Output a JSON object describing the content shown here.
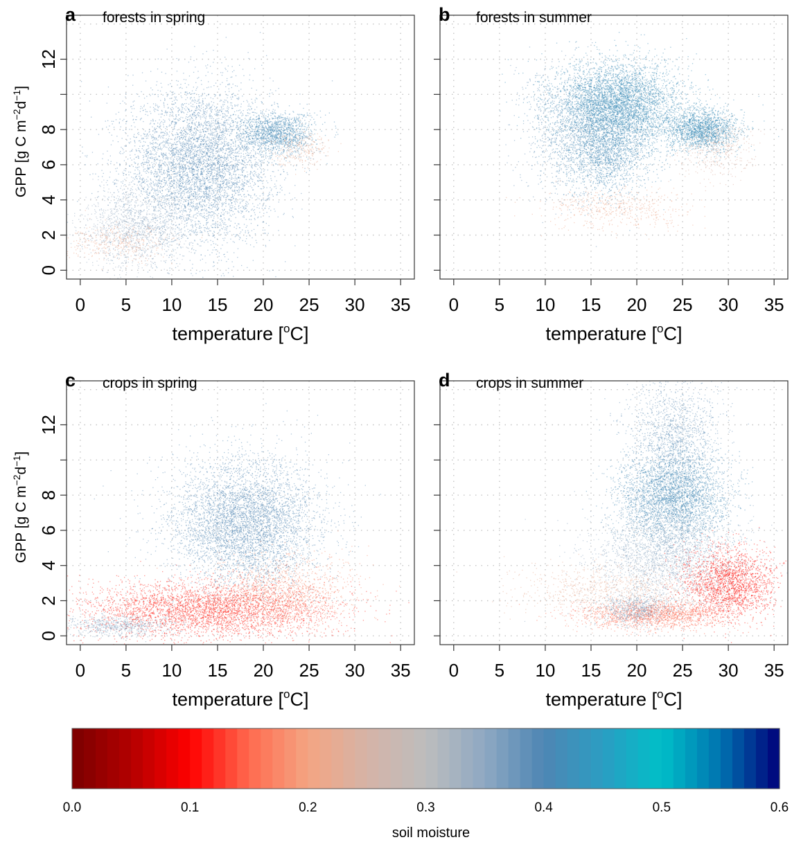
{
  "chart_data": [
    {
      "panel": "a",
      "type": "scatter",
      "title": "forests in spring",
      "xlabel": "temperature [",
      "xlabel_sup": "o",
      "xlabel_end": "C]",
      "ylabel": "GPP [g C m",
      "ylabel_sup1": "−2",
      "ylabel_mid": "d",
      "ylabel_sup2": "−1",
      "ylabel_end": "]",
      "xlim": [
        -1.5,
        36.5
      ],
      "ylim": [
        -0.5,
        14.5
      ],
      "xticks": [
        0,
        5,
        10,
        15,
        20,
        25,
        30,
        35
      ],
      "yticks": [
        0,
        2,
        4,
        6,
        8,
        12
      ],
      "grid": true,
      "color_variable": "soil moisture",
      "point_clusters": [
        {
          "x_mean": 13.0,
          "y_mean": 6.0,
          "x_sd": 4.0,
          "y_sd": 2.2,
          "soil_moisture": 0.39,
          "count": 5500
        },
        {
          "x_mean": 21.5,
          "y_mean": 7.8,
          "x_sd": 2.0,
          "y_sd": 0.6,
          "soil_moisture": 0.41,
          "count": 1400
        },
        {
          "x_mean": 6.0,
          "y_mean": 2.5,
          "x_sd": 3.0,
          "y_sd": 1.2,
          "soil_moisture": 0.34,
          "count": 1300
        },
        {
          "x_mean": 4.0,
          "y_mean": 1.5,
          "x_sd": 3.0,
          "y_sd": 0.5,
          "soil_moisture": 0.21,
          "count": 350
        },
        {
          "x_mean": 24.0,
          "y_mean": 7.0,
          "x_sd": 1.6,
          "y_sd": 0.5,
          "soil_moisture": 0.22,
          "count": 250
        }
      ]
    },
    {
      "panel": "b",
      "type": "scatter",
      "title": "forests in summer",
      "xlabel": "temperature [",
      "xlabel_sup": "o",
      "xlabel_end": "C]",
      "xlim": [
        -1.5,
        36.5
      ],
      "ylim": [
        -0.5,
        14.5
      ],
      "xticks": [
        0,
        5,
        10,
        15,
        20,
        25,
        30,
        35
      ],
      "yticks": [
        0,
        2,
        4,
        6,
        8,
        12
      ],
      "grid": true,
      "color_variable": "soil moisture",
      "point_clusters": [
        {
          "x_mean": 18.0,
          "y_mean": 9.5,
          "x_sd": 3.5,
          "y_sd": 1.2,
          "soil_moisture": 0.42,
          "count": 4500
        },
        {
          "x_mean": 16.5,
          "y_mean": 7.0,
          "x_sd": 2.6,
          "y_sd": 1.3,
          "soil_moisture": 0.41,
          "count": 2200
        },
        {
          "x_mean": 27.0,
          "y_mean": 8.0,
          "x_sd": 2.0,
          "y_sd": 0.6,
          "soil_moisture": 0.42,
          "count": 1800
        },
        {
          "x_mean": 18.0,
          "y_mean": 3.5,
          "x_sd": 4.0,
          "y_sd": 0.6,
          "soil_moisture": 0.21,
          "count": 500
        },
        {
          "x_mean": 28.5,
          "y_mean": 6.8,
          "x_sd": 2.0,
          "y_sd": 0.8,
          "soil_moisture": 0.24,
          "count": 400
        },
        {
          "x_mean": 12.0,
          "y_mean": 8.0,
          "x_sd": 2.5,
          "y_sd": 2.0,
          "soil_moisture": 0.38,
          "count": 800
        }
      ]
    },
    {
      "panel": "c",
      "type": "scatter",
      "title": "crops in spring",
      "xlabel": "temperature [",
      "xlabel_sup": "o",
      "xlabel_end": "C]",
      "ylabel": "GPP [g C m",
      "ylabel_sup1": "−2",
      "ylabel_mid": "d",
      "ylabel_sup2": "−1",
      "ylabel_end": "]",
      "xlim": [
        -1.5,
        36.5
      ],
      "ylim": [
        -0.5,
        14.5
      ],
      "xticks": [
        0,
        5,
        10,
        15,
        20,
        25,
        30,
        35
      ],
      "yticks": [
        0,
        2,
        4,
        6,
        8,
        12
      ],
      "grid": true,
      "color_variable": "soil moisture",
      "point_clusters": [
        {
          "x_mean": 18.0,
          "y_mean": 6.5,
          "x_sd": 4.0,
          "y_sd": 1.8,
          "soil_moisture": 0.39,
          "count": 5000
        },
        {
          "x_mean": 14.0,
          "y_mean": 1.5,
          "x_sd": 7.0,
          "y_sd": 0.8,
          "soil_moisture": 0.12,
          "count": 3800
        },
        {
          "x_mean": 22.0,
          "y_mean": 2.5,
          "x_sd": 4.0,
          "y_sd": 1.0,
          "soil_moisture": 0.18,
          "count": 1200
        },
        {
          "x_mean": 4.0,
          "y_mean": 0.6,
          "x_sd": 3.0,
          "y_sd": 0.3,
          "soil_moisture": 0.36,
          "count": 600
        }
      ]
    },
    {
      "panel": "d",
      "type": "scatter",
      "title": "crops in summer",
      "xlabel": "temperature [",
      "xlabel_sup": "o",
      "xlabel_end": "C]",
      "xlim": [
        -1.5,
        36.5
      ],
      "ylim": [
        -0.5,
        14.5
      ],
      "xticks": [
        0,
        5,
        10,
        15,
        20,
        25,
        30,
        35
      ],
      "yticks": [
        0,
        2,
        4,
        6,
        8,
        12
      ],
      "grid": true,
      "color_variable": "soil moisture",
      "point_clusters": [
        {
          "x_mean": 24.0,
          "y_mean": 8.0,
          "x_sd": 3.0,
          "y_sd": 1.3,
          "soil_moisture": 0.41,
          "count": 3500
        },
        {
          "x_mean": 24.0,
          "y_mean": 11.5,
          "x_sd": 2.5,
          "y_sd": 1.5,
          "soil_moisture": 0.38,
          "count": 1300
        },
        {
          "x_mean": 23.0,
          "y_mean": 4.5,
          "x_sd": 4.0,
          "y_sd": 1.5,
          "soil_moisture": 0.35,
          "count": 2300
        },
        {
          "x_mean": 30.0,
          "y_mean": 3.0,
          "x_sd": 2.5,
          "y_sd": 1.0,
          "soil_moisture": 0.11,
          "count": 2000
        },
        {
          "x_mean": 22.0,
          "y_mean": 1.2,
          "x_sd": 4.0,
          "y_sd": 0.4,
          "soil_moisture": 0.15,
          "count": 1500
        },
        {
          "x_mean": 17.0,
          "y_mean": 2.5,
          "x_sd": 5.0,
          "y_sd": 0.8,
          "soil_moisture": 0.22,
          "count": 900
        },
        {
          "x_mean": 20.0,
          "y_mean": 1.5,
          "x_sd": 2.0,
          "y_sd": 0.4,
          "soil_moisture": 0.36,
          "count": 600
        }
      ]
    }
  ],
  "colorbar": {
    "title": "soil moisture",
    "range": [
      0.0,
      0.6
    ],
    "ticks": [
      "0.0",
      "0.1",
      "0.2",
      "0.3",
      "0.4",
      "0.5",
      "0.6"
    ],
    "stops": [
      {
        "value": 0.0,
        "color": "#7a0000"
      },
      {
        "value": 0.05,
        "color": "#b30000"
      },
      {
        "value": 0.1,
        "color": "#ff0000"
      },
      {
        "value": 0.15,
        "color": "#ff6a4f"
      },
      {
        "value": 0.2,
        "color": "#f4a582"
      },
      {
        "value": 0.25,
        "color": "#d5b3a7"
      },
      {
        "value": 0.3,
        "color": "#bdbdbd"
      },
      {
        "value": 0.35,
        "color": "#8ea8c2"
      },
      {
        "value": 0.4,
        "color": "#4e86b4"
      },
      {
        "value": 0.45,
        "color": "#2b9dc2"
      },
      {
        "value": 0.5,
        "color": "#00bfc8"
      },
      {
        "value": 0.55,
        "color": "#0072b0"
      },
      {
        "value": 0.6,
        "color": "#00007a"
      }
    ]
  }
}
